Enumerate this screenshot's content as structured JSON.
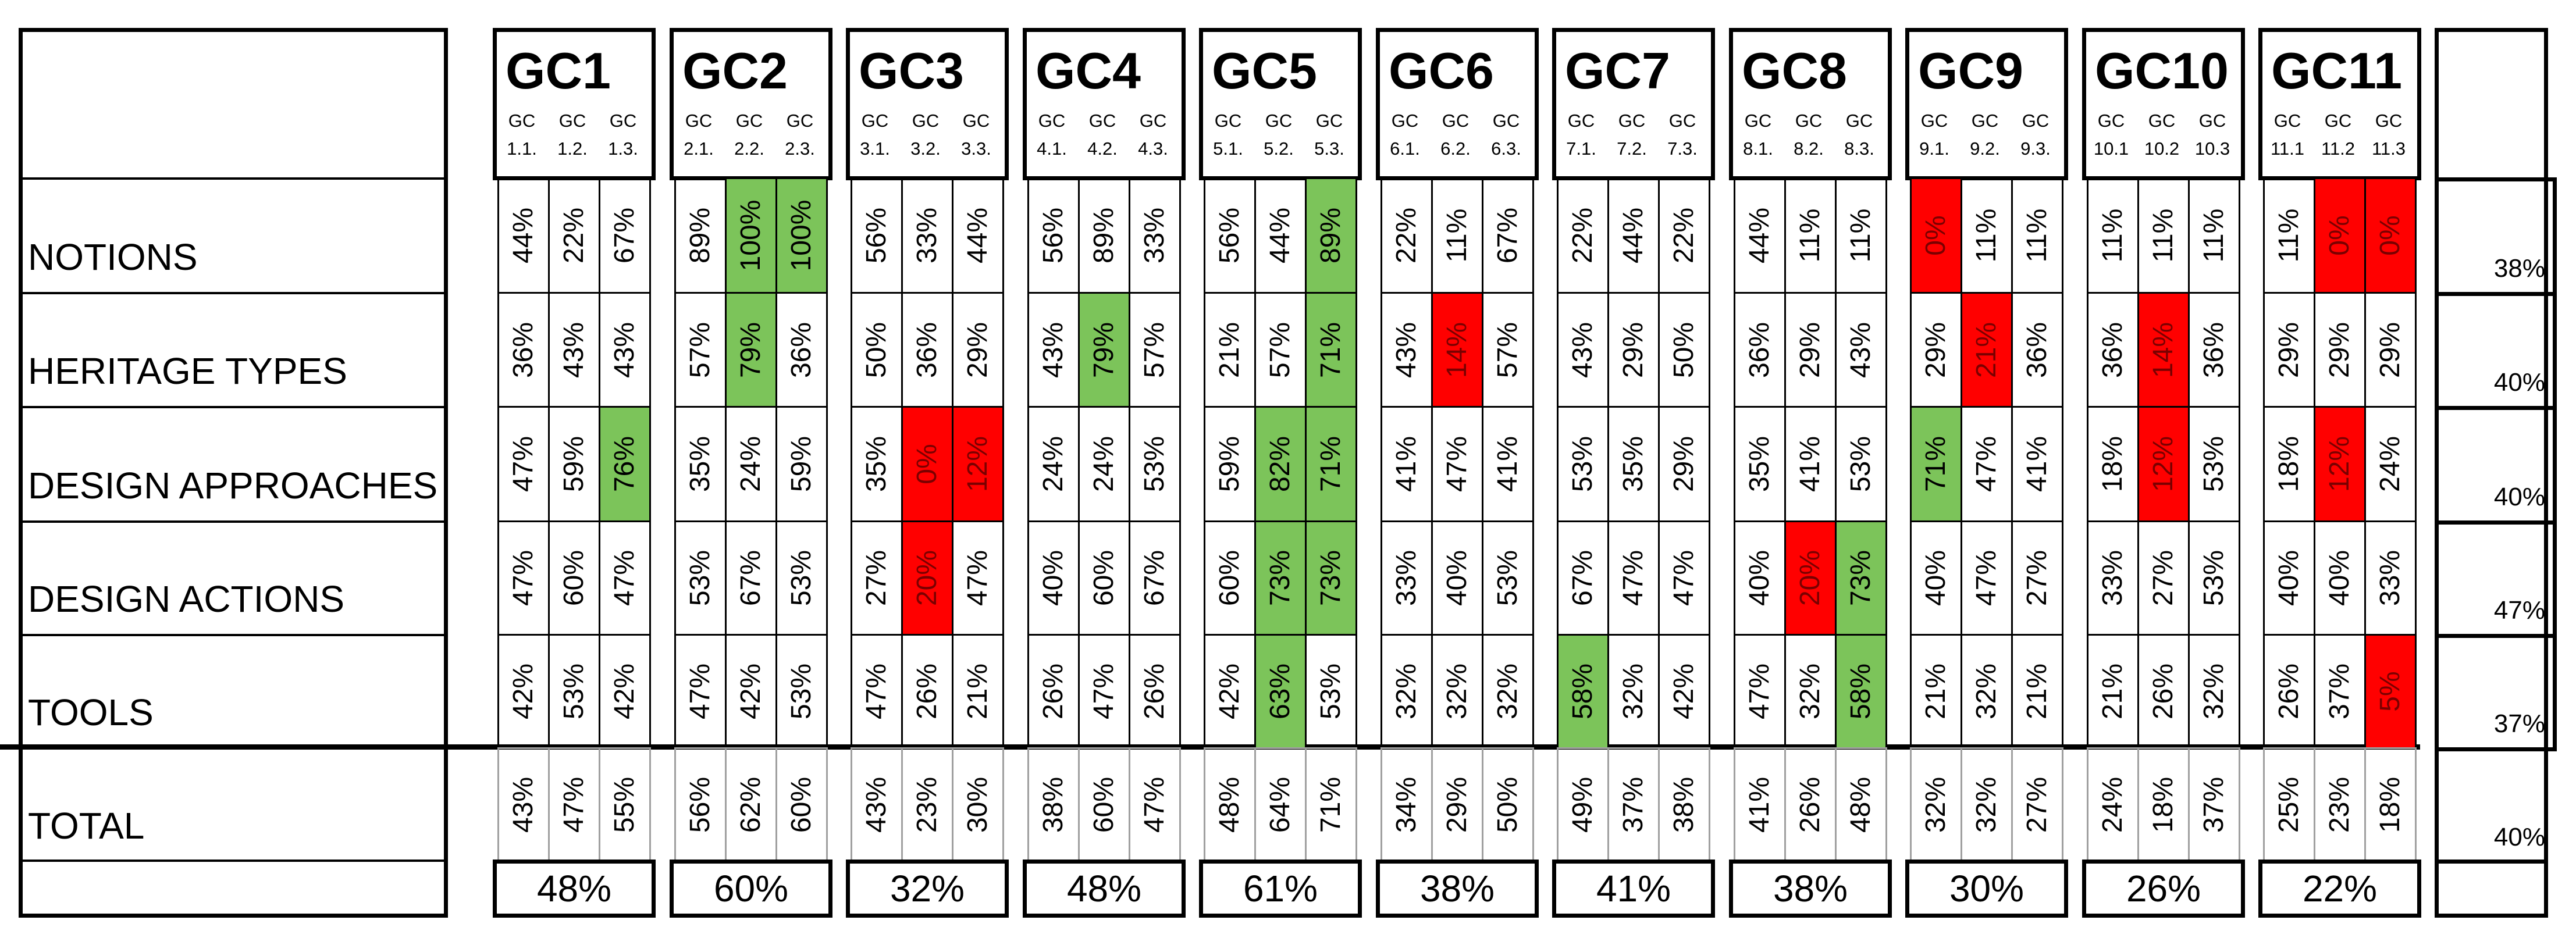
{
  "rows": [
    "NOTIONS",
    "HERITAGE TYPES",
    "DESIGN APPROACHES",
    "DESIGN ACTIONS",
    "TOOLS",
    "TOTAL"
  ],
  "row_averages": [
    "38%",
    "40%",
    "40%",
    "47%",
    "37%",
    "40%"
  ],
  "colors": {
    "green": "#7cc45a",
    "red": "#ff0000"
  },
  "groups": [
    {
      "name": "GC1",
      "sub": [
        [
          "GC",
          "1.1."
        ],
        [
          "GC",
          "1.2."
        ],
        [
          "GC",
          "1.3."
        ]
      ],
      "values": [
        [
          "44%",
          "22%",
          "67%"
        ],
        [
          "36%",
          "43%",
          "43%"
        ],
        [
          "47%",
          "59%",
          "76%"
        ],
        [
          "47%",
          "60%",
          "47%"
        ],
        [
          "42%",
          "53%",
          "42%"
        ],
        [
          "43%",
          "47%",
          "55%"
        ]
      ],
      "highlight": [
        [
          "",
          "",
          ""
        ],
        [
          "",
          "",
          ""
        ],
        [
          "",
          "",
          "g"
        ],
        [
          "",
          "",
          ""
        ],
        [
          "",
          "",
          ""
        ],
        [
          "",
          "",
          ""
        ]
      ],
      "avg": "48%"
    },
    {
      "name": "GC2",
      "sub": [
        [
          "GC",
          "2.1."
        ],
        [
          "GC",
          "2.2."
        ],
        [
          "GC",
          "2.3."
        ]
      ],
      "values": [
        [
          "89%",
          "100%",
          "100%"
        ],
        [
          "57%",
          "79%",
          "36%"
        ],
        [
          "35%",
          "24%",
          "59%"
        ],
        [
          "53%",
          "67%",
          "53%"
        ],
        [
          "47%",
          "42%",
          "53%"
        ],
        [
          "56%",
          "62%",
          "60%"
        ]
      ],
      "highlight": [
        [
          "",
          "g",
          "g"
        ],
        [
          "",
          "g",
          ""
        ],
        [
          "",
          "",
          ""
        ],
        [
          "",
          "",
          ""
        ],
        [
          "",
          "",
          ""
        ],
        [
          "",
          "",
          ""
        ]
      ],
      "avg": "60%"
    },
    {
      "name": "GC3",
      "sub": [
        [
          "GC",
          "3.1."
        ],
        [
          "GC",
          "3.2."
        ],
        [
          "GC",
          "3.3."
        ]
      ],
      "values": [
        [
          "56%",
          "33%",
          "44%"
        ],
        [
          "50%",
          "36%",
          "29%"
        ],
        [
          "35%",
          "0%",
          "12%"
        ],
        [
          "27%",
          "20%",
          "47%"
        ],
        [
          "47%",
          "26%",
          "21%"
        ],
        [
          "43%",
          "23%",
          "30%"
        ]
      ],
      "highlight": [
        [
          "",
          "",
          ""
        ],
        [
          "",
          "",
          ""
        ],
        [
          "",
          "r",
          "r"
        ],
        [
          "",
          "r",
          ""
        ],
        [
          "",
          "",
          ""
        ],
        [
          "",
          "",
          ""
        ]
      ],
      "avg": "32%"
    },
    {
      "name": "GC4",
      "sub": [
        [
          "GC",
          "4.1."
        ],
        [
          "GC",
          "4.2."
        ],
        [
          "GC",
          "4.3."
        ]
      ],
      "values": [
        [
          "56%",
          "89%",
          "33%"
        ],
        [
          "43%",
          "79%",
          "57%"
        ],
        [
          "24%",
          "24%",
          "53%"
        ],
        [
          "40%",
          "60%",
          "67%"
        ],
        [
          "26%",
          "47%",
          "26%"
        ],
        [
          "38%",
          "60%",
          "47%"
        ]
      ],
      "highlight": [
        [
          "",
          "",
          ""
        ],
        [
          "",
          "g",
          ""
        ],
        [
          "",
          "",
          ""
        ],
        [
          "",
          "",
          ""
        ],
        [
          "",
          "",
          ""
        ],
        [
          "",
          "",
          ""
        ]
      ],
      "avg": "48%"
    },
    {
      "name": "GC5",
      "sub": [
        [
          "GC",
          "5.1."
        ],
        [
          "GC",
          "5.2."
        ],
        [
          "GC",
          "5.3."
        ]
      ],
      "values": [
        [
          "56%",
          "44%",
          "89%"
        ],
        [
          "21%",
          "57%",
          "71%"
        ],
        [
          "59%",
          "82%",
          "71%"
        ],
        [
          "60%",
          "73%",
          "73%"
        ],
        [
          "42%",
          "63%",
          "53%"
        ],
        [
          "48%",
          "64%",
          "71%"
        ]
      ],
      "highlight": [
        [
          "",
          "",
          "g"
        ],
        [
          "",
          "",
          "g"
        ],
        [
          "",
          "g",
          "g"
        ],
        [
          "",
          "g",
          "g"
        ],
        [
          "",
          "g",
          ""
        ],
        [
          "",
          "",
          ""
        ]
      ],
      "avg": "61%"
    },
    {
      "name": "GC6",
      "sub": [
        [
          "GC",
          "6.1."
        ],
        [
          "GC",
          "6.2."
        ],
        [
          "GC",
          "6.3."
        ]
      ],
      "values": [
        [
          "22%",
          "11%",
          "67%"
        ],
        [
          "43%",
          "14%",
          "57%"
        ],
        [
          "41%",
          "47%",
          "41%"
        ],
        [
          "33%",
          "40%",
          "53%"
        ],
        [
          "32%",
          "32%",
          "32%"
        ],
        [
          "34%",
          "29%",
          "50%"
        ]
      ],
      "highlight": [
        [
          "",
          "",
          ""
        ],
        [
          "",
          "r",
          ""
        ],
        [
          "",
          "",
          ""
        ],
        [
          "",
          "",
          ""
        ],
        [
          "",
          "",
          ""
        ],
        [
          "",
          "",
          ""
        ]
      ],
      "avg": "38%"
    },
    {
      "name": "GC7",
      "sub": [
        [
          "GC",
          "7.1."
        ],
        [
          "GC",
          "7.2."
        ],
        [
          "GC",
          "7.3."
        ]
      ],
      "values": [
        [
          "22%",
          "44%",
          "22%"
        ],
        [
          "43%",
          "29%",
          "50%"
        ],
        [
          "53%",
          "35%",
          "29%"
        ],
        [
          "67%",
          "47%",
          "47%"
        ],
        [
          "58%",
          "32%",
          "42%"
        ],
        [
          "49%",
          "37%",
          "38%"
        ]
      ],
      "highlight": [
        [
          "",
          "",
          ""
        ],
        [
          "",
          "",
          ""
        ],
        [
          "",
          "",
          ""
        ],
        [
          "",
          "",
          ""
        ],
        [
          "g",
          "",
          ""
        ],
        [
          "",
          "",
          ""
        ]
      ],
      "avg": "41%"
    },
    {
      "name": "GC8",
      "sub": [
        [
          "GC",
          "8.1."
        ],
        [
          "GC",
          "8.2."
        ],
        [
          "GC",
          "8.3."
        ]
      ],
      "values": [
        [
          "44%",
          "11%",
          "11%"
        ],
        [
          "36%",
          "29%",
          "43%"
        ],
        [
          "35%",
          "41%",
          "53%"
        ],
        [
          "40%",
          "20%",
          "73%"
        ],
        [
          "47%",
          "32%",
          "58%"
        ],
        [
          "41%",
          "26%",
          "48%"
        ]
      ],
      "highlight": [
        [
          "",
          "",
          ""
        ],
        [
          "",
          "",
          ""
        ],
        [
          "",
          "",
          ""
        ],
        [
          "",
          "r",
          "g"
        ],
        [
          "",
          "",
          "g"
        ],
        [
          "",
          "",
          ""
        ]
      ],
      "avg": "38%"
    },
    {
      "name": "GC9",
      "sub": [
        [
          "GC",
          "9.1."
        ],
        [
          "GC",
          "9.2."
        ],
        [
          "GC",
          "9.3."
        ]
      ],
      "values": [
        [
          "0%",
          "11%",
          "11%"
        ],
        [
          "29%",
          "21%",
          "36%"
        ],
        [
          "71%",
          "47%",
          "41%"
        ],
        [
          "40%",
          "47%",
          "27%"
        ],
        [
          "21%",
          "32%",
          "21%"
        ],
        [
          "32%",
          "32%",
          "27%"
        ]
      ],
      "highlight": [
        [
          "r",
          "",
          ""
        ],
        [
          "",
          "r",
          ""
        ],
        [
          "g",
          "",
          ""
        ],
        [
          "",
          "",
          ""
        ],
        [
          "",
          "",
          ""
        ],
        [
          "",
          "",
          ""
        ]
      ],
      "avg": "30%"
    },
    {
      "name": "GC10",
      "sub": [
        [
          "GC",
          "10.1"
        ],
        [
          "GC",
          "10.2"
        ],
        [
          "GC",
          "10.3"
        ]
      ],
      "values": [
        [
          "11%",
          "11%",
          "11%"
        ],
        [
          "36%",
          "14%",
          "36%"
        ],
        [
          "18%",
          "12%",
          "53%"
        ],
        [
          "33%",
          "27%",
          "53%"
        ],
        [
          "21%",
          "26%",
          "32%"
        ],
        [
          "24%",
          "18%",
          "37%"
        ]
      ],
      "highlight": [
        [
          "",
          "",
          ""
        ],
        [
          "",
          "r",
          ""
        ],
        [
          "",
          "r",
          ""
        ],
        [
          "",
          "",
          ""
        ],
        [
          "",
          "",
          ""
        ],
        [
          "",
          "",
          ""
        ]
      ],
      "avg": "26%"
    },
    {
      "name": "GC11",
      "sub": [
        [
          "GC",
          "11.1"
        ],
        [
          "GC",
          "11.2"
        ],
        [
          "GC",
          "11.3"
        ]
      ],
      "values": [
        [
          "11%",
          "0%",
          "0%"
        ],
        [
          "29%",
          "29%",
          "29%"
        ],
        [
          "18%",
          "12%",
          "24%"
        ],
        [
          "40%",
          "40%",
          "33%"
        ],
        [
          "26%",
          "37%",
          "5%"
        ],
        [
          "25%",
          "23%",
          "18%"
        ]
      ],
      "highlight": [
        [
          "",
          "r",
          "r"
        ],
        [
          "",
          "",
          ""
        ],
        [
          "",
          "r",
          ""
        ],
        [
          "",
          "",
          ""
        ],
        [
          "",
          "",
          "r"
        ],
        [
          "",
          "",
          ""
        ]
      ],
      "avg": "22%"
    }
  ]
}
